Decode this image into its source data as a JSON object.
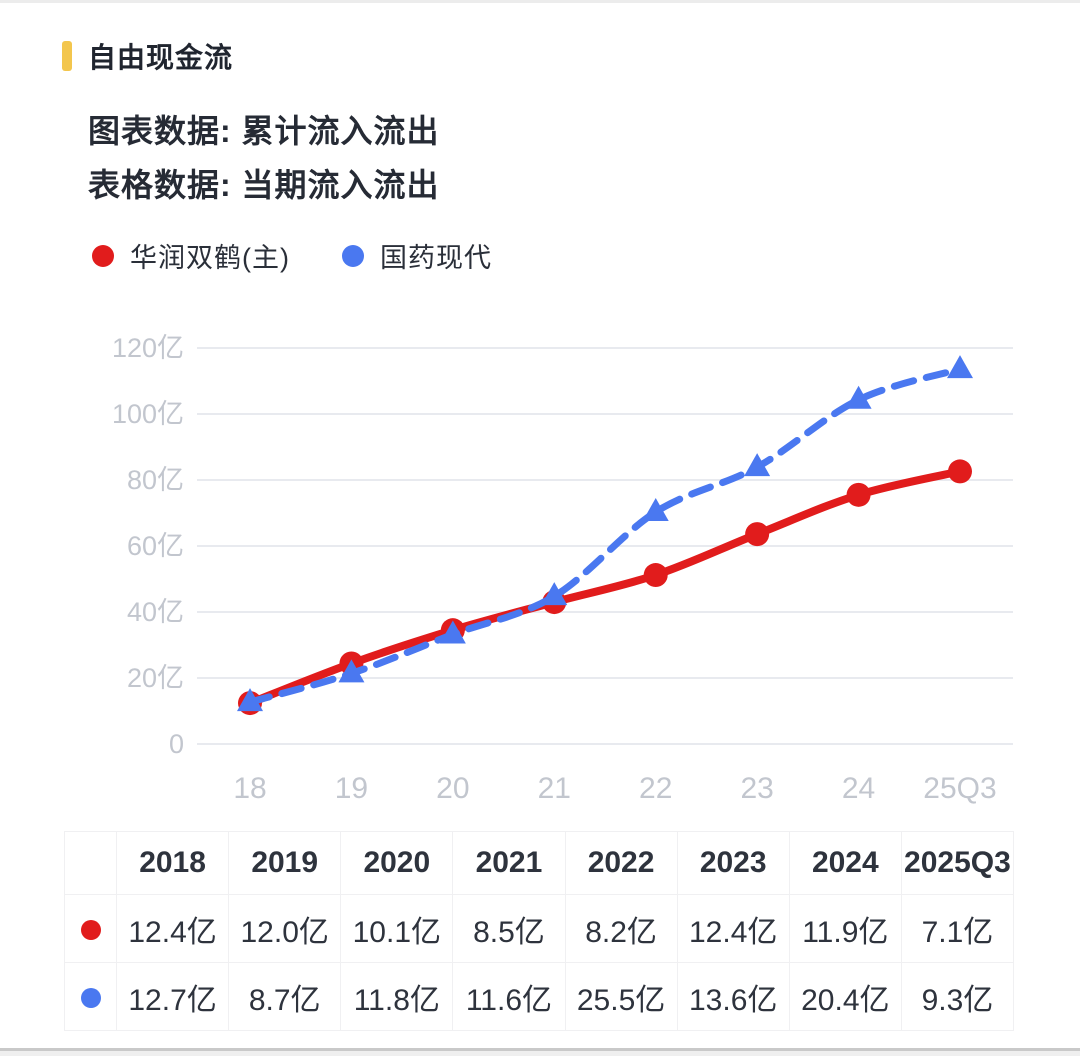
{
  "page": {
    "title": "自由现金流",
    "subtitle_chart": "图表数据: 累计流入流出",
    "subtitle_table": "表格数据: 当期流入流出",
    "accent_color": "#f3c64d",
    "text_color": "#262b35",
    "axis_text_color": "#c2c6ce",
    "gridline_color": "#e8eaef"
  },
  "legend": [
    {
      "label": "华润双鹤(主)",
      "color": "#e11c1c",
      "marker": "circle"
    },
    {
      "label": "国药现代",
      "color": "#4a78f0",
      "marker": "triangle"
    }
  ],
  "chart_data": {
    "type": "line",
    "title": "自由现金流 累计流入流出",
    "x": [
      "18",
      "19",
      "20",
      "21",
      "22",
      "23",
      "24",
      "25Q3"
    ],
    "ylabel": "亿",
    "ylim": [
      0,
      120
    ],
    "yticks": [
      {
        "value": 0,
        "label": "0"
      },
      {
        "value": 20,
        "label": "20亿"
      },
      {
        "value": 40,
        "label": "40亿"
      },
      {
        "value": 60,
        "label": "60亿"
      },
      {
        "value": 80,
        "label": "80亿"
      },
      {
        "value": 100,
        "label": "100亿"
      },
      {
        "value": 120,
        "label": "120亿"
      }
    ],
    "grid": true,
    "legend_position": "top",
    "series": [
      {
        "name": "华润双鹤(主)",
        "color": "#e11c1c",
        "line_style": "solid",
        "marker": "circle",
        "values": [
          12.4,
          24.4,
          34.5,
          43.0,
          51.2,
          63.6,
          75.5,
          82.6
        ],
        "period_values": [
          12.4,
          12.0,
          10.1,
          8.5,
          8.2,
          12.4,
          11.9,
          7.1
        ]
      },
      {
        "name": "国药现代",
        "color": "#4a78f0",
        "line_style": "dashed",
        "marker": "triangle",
        "values": [
          12.7,
          21.4,
          33.2,
          44.8,
          70.3,
          83.9,
          104.3,
          113.6
        ],
        "period_values": [
          12.7,
          8.7,
          11.8,
          11.6,
          25.5,
          13.6,
          20.4,
          9.3
        ]
      }
    ]
  },
  "table": {
    "headers": [
      "2018",
      "2019",
      "2020",
      "2021",
      "2022",
      "2023",
      "2024",
      "2025Q3"
    ],
    "rows": [
      {
        "series": "华润双鹤(主)",
        "dot_color": "#e11c1c",
        "values": [
          "12.4亿",
          "12.0亿",
          "10.1亿",
          "8.5亿",
          "8.2亿",
          "12.4亿",
          "11.9亿",
          "7.1亿"
        ]
      },
      {
        "series": "国药现代",
        "dot_color": "#4a78f0",
        "values": [
          "12.7亿",
          "8.7亿",
          "11.8亿",
          "11.6亿",
          "25.5亿",
          "13.6亿",
          "20.4亿",
          "9.3亿"
        ]
      }
    ]
  }
}
